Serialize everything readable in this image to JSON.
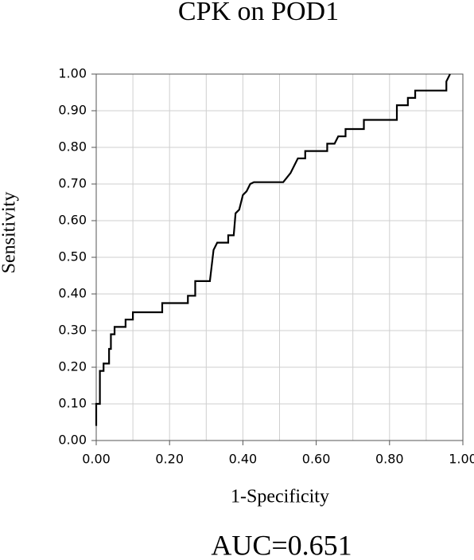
{
  "chart_data": {
    "type": "line",
    "title": "CPK on POD1",
    "xlabel": "1-Specificity",
    "ylabel": "Sensitivity",
    "annotation": "AUC=0.651",
    "x": [
      0,
      0,
      0.01,
      0.01,
      0.02,
      0.02,
      0.035,
      0.035,
      0.04,
      0.04,
      0.05,
      0.05,
      0.08,
      0.08,
      0.1,
      0.1,
      0.18,
      0.18,
      0.25,
      0.25,
      0.27,
      0.27,
      0.31,
      0.32,
      0.33,
      0.36,
      0.36,
      0.375,
      0.38,
      0.39,
      0.4,
      0.41,
      0.42,
      0.43,
      0.51,
      0.53,
      0.54,
      0.55,
      0.57,
      0.57,
      0.63,
      0.63,
      0.65,
      0.66,
      0.68,
      0.68,
      0.73,
      0.73,
      0.82,
      0.82,
      0.85,
      0.85,
      0.87,
      0.87,
      0.955,
      0.955,
      0.965
    ],
    "values": [
      0.04,
      0.1,
      0.1,
      0.19,
      0.19,
      0.21,
      0.21,
      0.25,
      0.25,
      0.29,
      0.29,
      0.31,
      0.31,
      0.33,
      0.33,
      0.35,
      0.35,
      0.375,
      0.375,
      0.395,
      0.395,
      0.435,
      0.435,
      0.52,
      0.54,
      0.54,
      0.56,
      0.56,
      0.62,
      0.63,
      0.67,
      0.68,
      0.7,
      0.705,
      0.705,
      0.73,
      0.75,
      0.77,
      0.77,
      0.79,
      0.79,
      0.81,
      0.81,
      0.83,
      0.83,
      0.85,
      0.85,
      0.875,
      0.875,
      0.915,
      0.915,
      0.935,
      0.935,
      0.955,
      0.955,
      0.98,
      1.0
    ],
    "color": "#000000",
    "xlim": [
      0,
      1
    ],
    "ylim": [
      0,
      1
    ],
    "xticks": [
      {
        "value": 0,
        "label": "0.00"
      },
      {
        "value": 0.2,
        "label": "0.20"
      },
      {
        "value": 0.4,
        "label": "0.40"
      },
      {
        "value": 0.6,
        "label": "0.60"
      },
      {
        "value": 0.8,
        "label": "0.80"
      },
      {
        "value": 1,
        "label": "1.00"
      }
    ],
    "x_minor_grid": [
      0.1,
      0.3,
      0.5,
      0.7,
      0.9
    ],
    "yticks": [
      {
        "value": 0,
        "label": "0.00"
      },
      {
        "value": 0.1,
        "label": "0.10"
      },
      {
        "value": 0.2,
        "label": "0.20"
      },
      {
        "value": 0.3,
        "label": "0.30"
      },
      {
        "value": 0.4,
        "label": "0.40"
      },
      {
        "value": 0.5,
        "label": "0.50"
      },
      {
        "value": 0.6,
        "label": "0.60"
      },
      {
        "value": 0.7,
        "label": "0.70"
      },
      {
        "value": 0.8,
        "label": "0.80"
      },
      {
        "value": 0.9,
        "label": "0.90"
      },
      {
        "value": 1,
        "label": "1.00"
      }
    ],
    "grid": true
  }
}
